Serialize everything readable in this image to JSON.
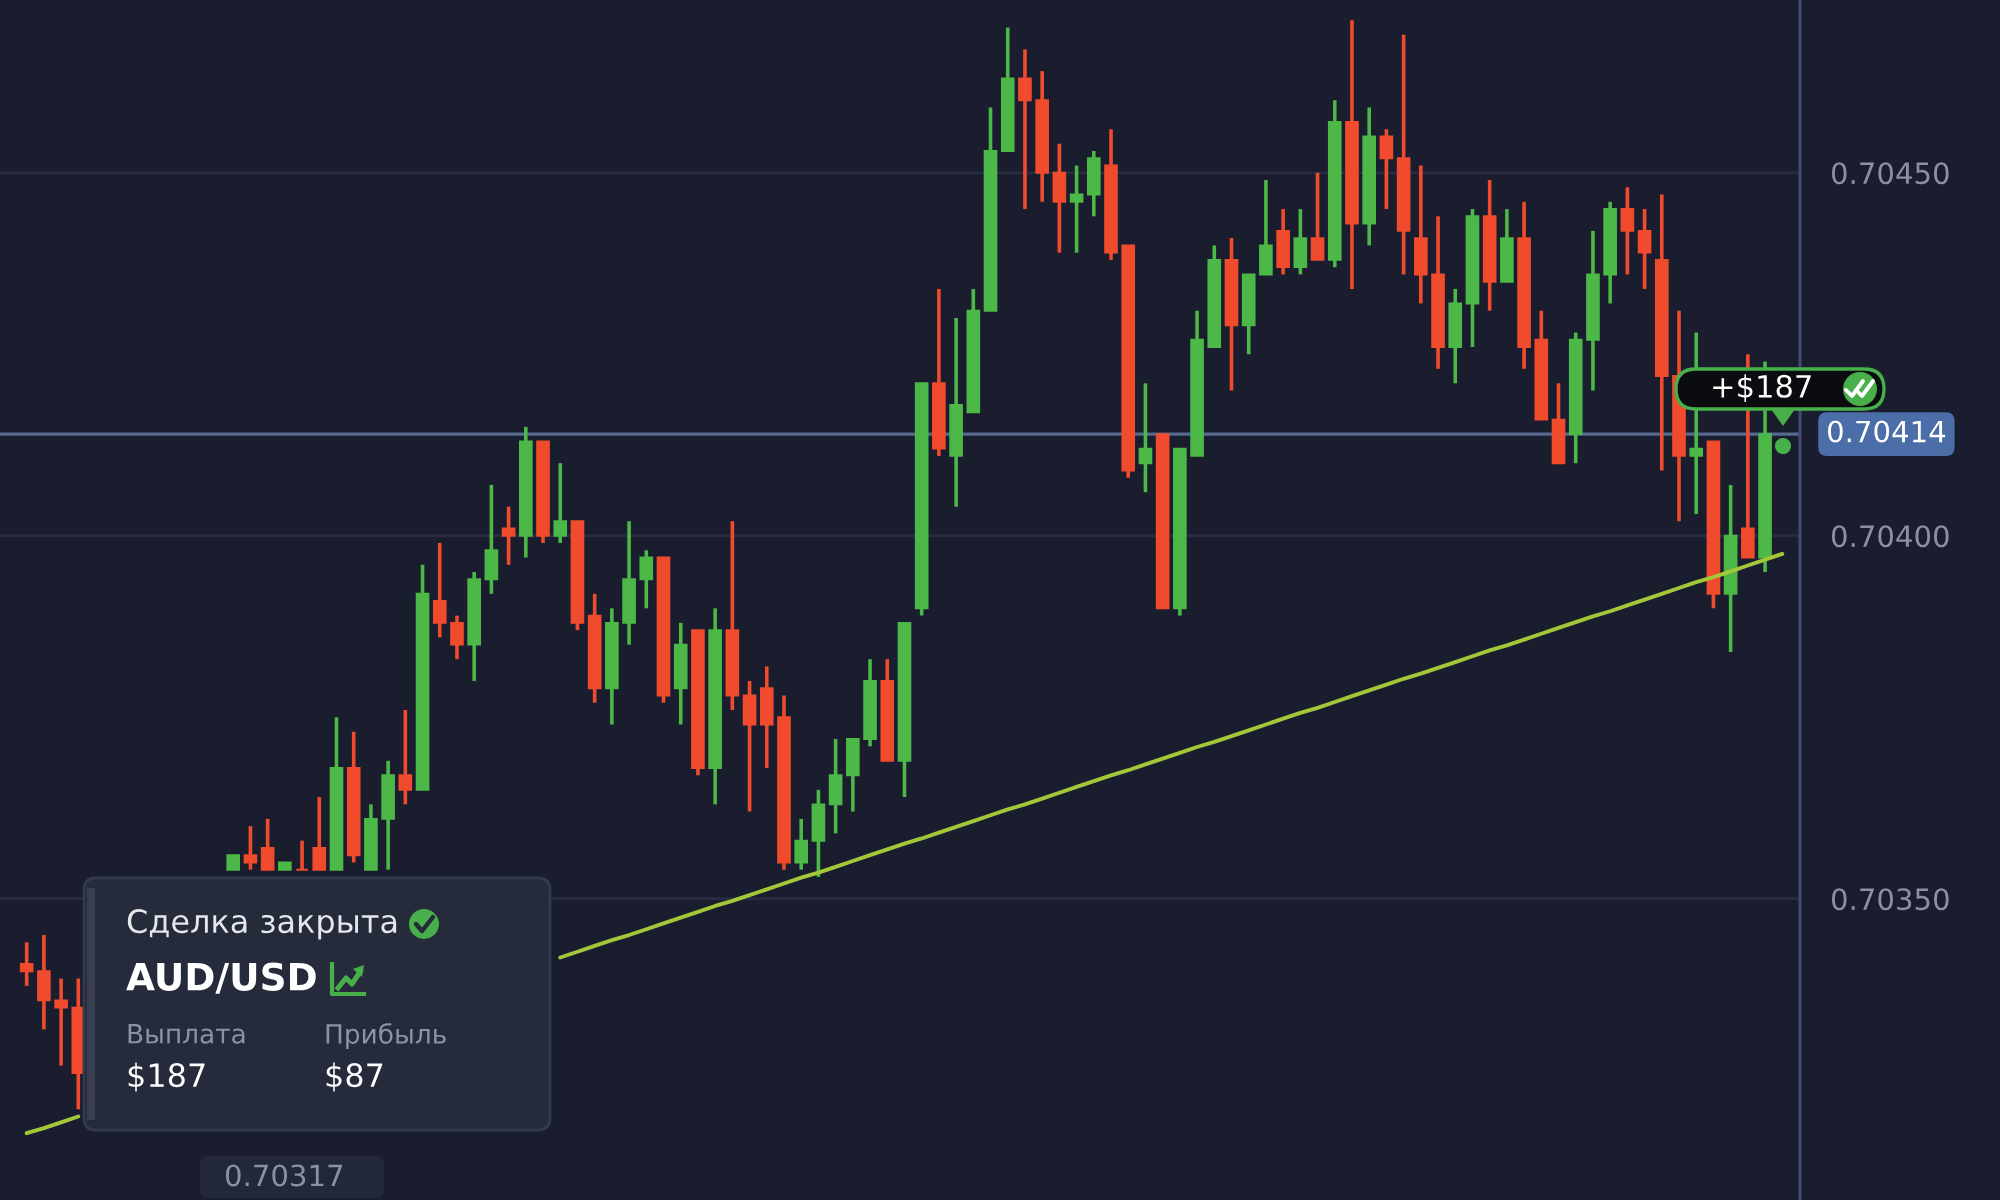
{
  "chart_data": {
    "type": "candlestick",
    "categories": [
      null,
      null,
      null,
      null,
      null,
      null,
      null,
      null,
      null,
      null,
      null,
      null,
      null,
      null,
      null,
      null,
      null,
      null,
      null,
      null,
      null,
      null,
      null,
      null,
      null,
      null,
      null,
      null,
      null,
      null,
      null,
      null,
      null,
      null,
      null,
      null,
      null,
      null,
      null,
      null,
      null,
      null,
      null,
      null,
      null,
      null,
      null,
      null,
      null,
      null,
      null,
      null,
      null,
      null,
      null,
      null,
      null,
      null,
      null,
      null,
      null,
      null,
      null,
      null,
      null,
      null,
      null,
      null,
      null,
      null,
      null,
      null,
      null,
      null,
      null,
      null,
      null,
      null,
      null,
      null,
      null,
      null,
      null,
      null,
      null,
      null,
      null,
      null,
      null,
      null,
      null,
      null,
      null,
      null,
      null,
      null,
      null,
      null,
      null,
      null,
      null,
      null,
      null
    ],
    "ohlc": [
      [
        0.70341,
        0.70344,
        0.70338,
        0.7034
      ],
      [
        0.7034,
        0.70345,
        0.70332,
        0.70336
      ],
      [
        0.70336,
        0.70339,
        0.70327,
        0.70335
      ],
      [
        0.70335,
        0.70339,
        0.70321,
        0.70326
      ],
      null,
      null,
      null,
      null,
      null,
      null,
      null,
      null,
      [
        0.70354,
        0.70356,
        0.70354,
        0.70356
      ],
      [
        0.70356,
        0.7036,
        0.70354,
        0.70355
      ],
      [
        0.70357,
        0.70361,
        0.70354,
        0.70354
      ],
      [
        0.70354,
        0.70355,
        0.70354,
        0.70355
      ],
      [
        0.70354,
        0.70358,
        0.70354,
        0.70354
      ],
      [
        0.70357,
        0.70364,
        0.70354,
        0.70354
      ],
      [
        0.70354,
        0.70375,
        0.70354,
        0.70368
      ],
      [
        0.70368,
        0.70373,
        0.70355,
        0.70356
      ],
      [
        0.70354,
        0.70363,
        0.70354,
        0.70361
      ],
      [
        0.70361,
        0.70369,
        0.70354,
        0.70367
      ],
      [
        0.70367,
        0.70376,
        0.70363,
        0.70365
      ],
      [
        0.70365,
        0.70396,
        0.70365,
        0.70392
      ],
      [
        0.70391,
        0.70399,
        0.70386,
        0.70388
      ],
      [
        0.70388,
        0.70389,
        0.70383,
        0.70385
      ],
      [
        0.70385,
        0.70395,
        0.7038,
        0.70394
      ],
      [
        0.70394,
        0.70407,
        0.70392,
        0.70398
      ],
      [
        0.70401,
        0.70404,
        0.70396,
        0.704
      ],
      [
        0.704,
        0.70415,
        0.70397,
        0.70413
      ],
      [
        0.70413,
        0.70413,
        0.70399,
        0.704
      ],
      [
        0.704,
        0.7041,
        0.70399,
        0.70402
      ],
      [
        0.70402,
        0.70402,
        0.70387,
        0.70388
      ],
      [
        0.70389,
        0.70392,
        0.70377,
        0.70379
      ],
      [
        0.70379,
        0.7039,
        0.70374,
        0.70388
      ],
      [
        0.70388,
        0.70402,
        0.70385,
        0.70394
      ],
      [
        0.70394,
        0.70398,
        0.7039,
        0.70397
      ],
      [
        0.70397,
        0.70397,
        0.70377,
        0.70378
      ],
      [
        0.70379,
        0.70388,
        0.70374,
        0.70385
      ],
      [
        0.70387,
        0.70387,
        0.70367,
        0.70368
      ],
      [
        0.70368,
        0.7039,
        0.70363,
        0.70387
      ],
      [
        0.70387,
        0.70402,
        0.70376,
        0.70378
      ],
      [
        0.70378,
        0.7038,
        0.70362,
        0.70374
      ],
      [
        0.70379,
        0.70382,
        0.70368,
        0.70374
      ],
      [
        0.70375,
        0.70378,
        0.70354,
        0.70355
      ],
      [
        0.70355,
        0.70361,
        0.70354,
        0.70358
      ],
      [
        0.70358,
        0.70365,
        0.70353,
        0.70363
      ],
      [
        0.70363,
        0.70372,
        0.70359,
        0.70367
      ],
      [
        0.70367,
        0.70372,
        0.70362,
        0.70372
      ],
      [
        0.70372,
        0.70383,
        0.70371,
        0.7038
      ],
      [
        0.7038,
        0.70383,
        0.70369,
        0.70369
      ],
      [
        0.70369,
        0.70388,
        0.70364,
        0.70388
      ],
      [
        0.7039,
        0.70421,
        0.70389,
        0.70421
      ],
      [
        0.70421,
        0.70434,
        0.70411,
        0.70412
      ],
      [
        0.70411,
        0.7043,
        0.70404,
        0.70418
      ],
      [
        0.70417,
        0.70434,
        0.70417,
        0.70431
      ],
      [
        0.70431,
        0.70459,
        0.70431,
        0.70453
      ],
      [
        0.70453,
        0.7047,
        0.70453,
        0.70463
      ],
      [
        0.70463,
        0.70467,
        0.70445,
        0.7046
      ],
      [
        0.7046,
        0.70464,
        0.70446,
        0.7045
      ],
      [
        0.7045,
        0.70454,
        0.70439,
        0.70446
      ],
      [
        0.70446,
        0.70451,
        0.70439,
        0.70447
      ],
      [
        0.70447,
        0.70453,
        0.70444,
        0.70452
      ],
      [
        0.70451,
        0.70456,
        0.70438,
        0.70439
      ],
      [
        0.7044,
        0.7044,
        0.70408,
        0.70409
      ],
      [
        0.7041,
        0.70421,
        0.70406,
        0.70412
      ],
      [
        0.70414,
        0.70414,
        0.7039,
        0.7039
      ],
      [
        0.7039,
        0.70412,
        0.70389,
        0.70412
      ],
      [
        0.70411,
        0.70431,
        0.70411,
        0.70427
      ],
      [
        0.70426,
        0.7044,
        0.70426,
        0.70438
      ],
      [
        0.70438,
        0.70441,
        0.7042,
        0.70429
      ],
      [
        0.70429,
        0.70436,
        0.70425,
        0.70436
      ],
      [
        0.70436,
        0.70449,
        0.70436,
        0.7044
      ],
      [
        0.70442,
        0.70445,
        0.70436,
        0.70437
      ],
      [
        0.70437,
        0.70445,
        0.70436,
        0.70441
      ],
      [
        0.70441,
        0.7045,
        0.70438,
        0.70438
      ],
      [
        0.70438,
        0.7046,
        0.70437,
        0.70457
      ],
      [
        0.70457,
        0.70471,
        0.70434,
        0.70443
      ],
      [
        0.70443,
        0.70459,
        0.7044,
        0.70455
      ],
      [
        0.70455,
        0.70456,
        0.70445,
        0.70452
      ],
      [
        0.70452,
        0.70469,
        0.70436,
        0.70442
      ],
      [
        0.70441,
        0.70451,
        0.70432,
        0.70436
      ],
      [
        0.70436,
        0.70444,
        0.70423,
        0.70426
      ],
      [
        0.70426,
        0.70434,
        0.70421,
        0.70432
      ],
      [
        0.70432,
        0.70445,
        0.70426,
        0.70444
      ],
      [
        0.70444,
        0.70449,
        0.70431,
        0.70435
      ],
      [
        0.70435,
        0.70445,
        0.70435,
        0.70441
      ],
      [
        0.70441,
        0.70446,
        0.70423,
        0.70426
      ],
      [
        0.70427,
        0.70431,
        0.70416,
        0.70416
      ],
      [
        0.70416,
        0.70421,
        0.7041,
        0.7041
      ],
      [
        0.70414,
        0.70428,
        0.7041,
        0.70427
      ],
      [
        0.70427,
        0.70442,
        0.7042,
        0.70436
      ],
      [
        0.70436,
        0.70446,
        0.70432,
        0.70445
      ],
      [
        0.70445,
        0.70448,
        0.70436,
        0.70442
      ],
      [
        0.70442,
        0.70445,
        0.70434,
        0.70439
      ],
      [
        0.70438,
        0.70447,
        0.70409,
        0.70422
      ],
      [
        0.70422,
        0.70431,
        0.70402,
        0.70411
      ],
      [
        0.70411,
        0.70428,
        0.70403,
        0.70412
      ],
      [
        0.70413,
        0.70413,
        0.7039,
        0.70392
      ],
      [
        0.70392,
        0.70407,
        0.70384,
        0.704
      ],
      [
        0.70401,
        0.70425,
        0.70397,
        0.70397
      ],
      [
        0.70397,
        0.70424,
        0.70395,
        0.70414
      ],
      null
    ],
    "colors": [
      "#f04b2c",
      "#f04b2c",
      "#f04b2c",
      "#f04b2c",
      null,
      null,
      null,
      null,
      null,
      null,
      null,
      null,
      "#4cb847",
      "#f04b2c",
      "#f04b2c",
      "#4cb847",
      "#f04b2c",
      "#f04b2c",
      "#4cb847",
      "#f04b2c",
      "#4cb847",
      "#4cb847",
      "#f04b2c",
      "#4cb847",
      "#f04b2c",
      "#f04b2c",
      "#4cb847",
      "#4cb847",
      "#f04b2c",
      "#4cb847",
      "#f04b2c",
      "#4cb847",
      "#f04b2c",
      "#f04b2c",
      "#4cb847",
      "#4cb847",
      "#4cb847",
      "#f04b2c",
      "#4cb847",
      "#f04b2c",
      "#4cb847",
      "#f04b2c",
      "#f04b2c",
      "#f04b2c",
      "#f04b2c",
      "#4cb847",
      "#4cb847",
      "#4cb847",
      "#4cb847",
      "#4cb847",
      "#f04b2c",
      "#4cb847",
      "#4cb847",
      "#f04b2c",
      "#4cb847",
      "#4cb847",
      "#4cb847",
      "#4cb847",
      "#f04b2c",
      "#f04b2c",
      "#f04b2c",
      "#4cb847",
      "#4cb847",
      "#f04b2c",
      "#f04b2c",
      "#4cb847",
      "#f04b2c",
      "#4cb847",
      "#4cb847",
      "#4cb847",
      "#f04b2c",
      "#4cb847",
      "#4cb847",
      "#f04b2c",
      "#4cb847",
      "#f04b2c",
      "#4cb847",
      "#f04b2c",
      "#4cb847",
      "#f04b2c",
      "#f04b2c",
      "#f04b2c",
      "#f04b2c",
      "#4cb847",
      "#4cb847",
      "#f04b2c",
      "#4cb847",
      "#f04b2c",
      "#f04b2c",
      "#f04b2c",
      "#4cb847",
      "#4cb847",
      "#4cb847",
      "#f04b2c",
      "#f04b2c",
      "#f04b2c",
      "#f04b2c",
      "#4cb847",
      "#f04b2c",
      "#4cb847",
      "#f04b2c",
      "#4cb847",
      null
    ],
    "series": [
      {
        "type": "line",
        "color": "#a2c83a",
        "values": [
          0.703177,
          0.703184,
          0.703192,
          0.7032,
          null,
          null,
          null,
          null,
          null,
          null,
          null,
          null,
          null,
          null,
          null,
          null,
          null,
          null,
          null,
          null,
          null,
          null,
          null,
          null,
          null,
          null,
          null,
          null,
          null,
          null,
          null,
          0.703419,
          0.703427,
          0.703435,
          0.703443,
          0.70345,
          0.703458,
          0.703466,
          0.703474,
          0.703482,
          0.70349,
          0.703497,
          0.703505,
          0.703513,
          0.703521,
          0.703529,
          0.703536,
          0.703544,
          0.703552,
          0.70356,
          0.703568,
          0.703576,
          0.703583,
          0.703591,
          0.703599,
          0.703607,
          0.703615,
          0.703623,
          0.70363,
          0.703638,
          0.703646,
          0.703654,
          0.703662,
          0.70367,
          0.703677,
          0.703685,
          0.703693,
          0.703701,
          0.703709,
          0.703716,
          0.703724,
          0.703732,
          0.70374,
          0.703748,
          0.703756,
          0.703763,
          0.703771,
          0.703779,
          0.703787,
          0.703795,
          0.703803,
          0.70381,
          0.703818,
          0.703826,
          0.703834,
          0.703842,
          0.703849,
          0.703857,
          0.703865,
          0.703873,
          0.703881,
          0.703889,
          0.703896,
          0.703904,
          0.703912,
          0.70392,
          0.703928,
          0.703936,
          0.703943,
          0.703951,
          0.703959,
          0.703967,
          0.703975
        ]
      }
    ],
    "ylim": [
      0.703085,
      0.704738
    ],
    "yticks": [
      {
        "value": 0.7035,
        "label": "0.70350"
      },
      {
        "value": 0.704,
        "label": "0.70400"
      },
      {
        "value": 0.7045,
        "label": "0.70450"
      }
    ],
    "grid": "y",
    "tick_labels": "y",
    "ref_lines": [
      {
        "axis": "y",
        "value": 0.70414,
        "label": "0.70414",
        "color": "#56698f"
      }
    ],
    "annotations": [
      "Сделка закрыта",
      "AUD/USD",
      "Выплата",
      "$187",
      "Прибыль",
      "$87",
      "+$187",
      "0.70317"
    ]
  }
}
